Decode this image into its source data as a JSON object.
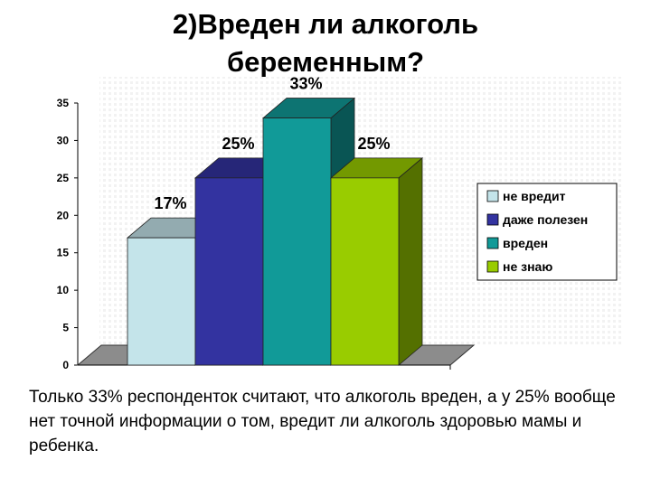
{
  "title": {
    "line1": "2)Вреден ли алкоголь",
    "line2": "беременным?"
  },
  "chart_data": {
    "type": "bar",
    "title": "",
    "xlabel": "",
    "ylabel": "",
    "ylim": [
      0,
      35
    ],
    "yticks": [
      0,
      5,
      10,
      15,
      20,
      25,
      30,
      35
    ],
    "series": [
      {
        "name": "не вредит",
        "value": 17,
        "label": "17%",
        "color": "#c4e4ea"
      },
      {
        "name": "даже полезен",
        "value": 25,
        "label": "25%",
        "color": "#3333a0"
      },
      {
        "name": "вреден",
        "value": 33,
        "label": "33%",
        "color": "#119a98"
      },
      {
        "name": "не знаю",
        "value": 25,
        "label": "25%",
        "color": "#99cc00"
      }
    ],
    "legend_position": "right"
  },
  "caption": "Только 33% респонденток считают, что алкоголь вреден, а у 25% вообще нет точной информации о том, вредит ли алкоголь  здоровью мамы и ребенка."
}
